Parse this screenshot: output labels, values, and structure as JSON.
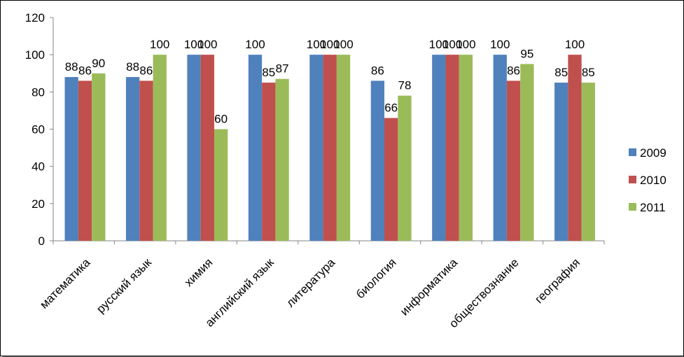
{
  "chart_data": {
    "type": "bar",
    "categories": [
      "математика",
      "русский язык",
      "химия",
      "английский язык",
      "литература",
      "биология",
      "информатика",
      "обществознание",
      "география"
    ],
    "series": [
      {
        "name": "2009",
        "color": "#4F81BD",
        "values": [
          88,
          88,
          100,
          100,
          100,
          86,
          100,
          100,
          85
        ]
      },
      {
        "name": "2010",
        "color": "#C0504D",
        "values": [
          86,
          86,
          100,
          85,
          100,
          66,
          100,
          86,
          100
        ]
      },
      {
        "name": "2011",
        "color": "#9BBB59",
        "values": [
          90,
          100,
          60,
          87,
          100,
          78,
          100,
          95,
          85
        ]
      }
    ],
    "ylim": [
      0,
      120
    ],
    "yticks": [
      0,
      20,
      40,
      60,
      80,
      100,
      120
    ],
    "grid": false,
    "legend": "right",
    "data_labels": true
  }
}
